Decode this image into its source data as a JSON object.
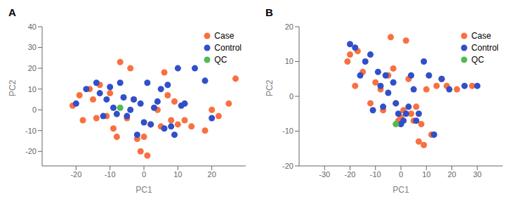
{
  "chart_data": [
    {
      "type": "scatter",
      "title": "A",
      "xlabel": "PC1",
      "ylabel": "PC2",
      "xlim": [
        -30,
        30
      ],
      "ylim": [
        -27,
        40
      ],
      "xticks": [
        -20,
        -10,
        0,
        10,
        20
      ],
      "yticks": [
        -20,
        -10,
        0,
        10,
        20,
        30,
        40
      ],
      "grid": false,
      "legend": "upper right",
      "series": [
        {
          "name": "Case",
          "color": "#F97040",
          "marker": "circle",
          "x": [
            -21,
            -19,
            -18,
            -16,
            -15,
            -14,
            -13,
            -11,
            -10,
            -9,
            -8,
            -7,
            -5,
            -4,
            -3,
            -2,
            -1,
            0,
            1,
            2,
            4,
            5,
            6,
            7,
            8,
            9,
            10,
            12,
            14,
            18,
            20,
            22,
            25,
            27
          ],
          "values": [
            2,
            7,
            -5,
            10,
            5,
            -4,
            12,
            -3,
            8,
            -9,
            -13,
            23,
            -4,
            20,
            5,
            -14,
            -20,
            -13,
            -22,
            -7,
            0,
            -8,
            18,
            7,
            -5,
            4,
            -7,
            -5,
            -8,
            -10,
            0,
            -3,
            3,
            15
          ]
        },
        {
          "name": "Control",
          "color": "#3050C8",
          "marker": "circle",
          "x": [
            -20,
            -17,
            -14,
            -13,
            -12,
            -11,
            -10,
            -9,
            -8,
            -7,
            -6,
            -5,
            -4,
            -3,
            -2,
            -1,
            0,
            1,
            2,
            3,
            4,
            5,
            6,
            7,
            8,
            9,
            10,
            11,
            12,
            15,
            18,
            20
          ],
          "values": [
            3,
            10,
            13,
            8,
            -3,
            5,
            11,
            1,
            -2,
            13,
            6,
            -3,
            0,
            5,
            -12,
            3,
            -6,
            13,
            -7,
            1,
            4,
            10,
            -9,
            12,
            -8,
            -12,
            20,
            2,
            3,
            20,
            14,
            -4
          ]
        },
        {
          "name": "QC",
          "color": "#50BB50",
          "marker": "circle",
          "x": [
            -7
          ],
          "values": [
            1
          ]
        }
      ]
    },
    {
      "type": "scatter",
      "title": "B",
      "xlabel": "PC1",
      "ylabel": "PC2",
      "xlim": [
        -40,
        40
      ],
      "ylim": [
        -20,
        20
      ],
      "xticks": [
        -30,
        -20,
        -10,
        0,
        10,
        20,
        30
      ],
      "yticks": [
        -20,
        -10,
        0,
        10,
        20
      ],
      "grid": false,
      "legend": "upper right",
      "series": [
        {
          "name": "Case",
          "color": "#F97040",
          "marker": "circle",
          "x": [
            -21,
            -20,
            -18,
            -17,
            -15,
            -12,
            -10,
            -8,
            -7,
            -5,
            -4,
            -3,
            -2,
            -1,
            0,
            1,
            2,
            3,
            4,
            5,
            6,
            7,
            8,
            9,
            10,
            12,
            14,
            16,
            18,
            22,
            28
          ],
          "values": [
            10,
            12,
            3,
            13,
            7,
            -2,
            4,
            2,
            -4,
            6,
            17,
            8,
            -2,
            -7,
            -6,
            -4,
            16,
            5,
            -5,
            -7,
            -3,
            -13,
            -8,
            -14,
            2,
            -11,
            3,
            5,
            3,
            2,
            3
          ]
        },
        {
          "name": "Control",
          "color": "#3050C8",
          "marker": "circle",
          "x": [
            -20,
            -18,
            -16,
            -14,
            -12,
            -11,
            -9,
            -8,
            -7,
            -6,
            -5,
            -3,
            -2,
            -1,
            0,
            1,
            2,
            3,
            4,
            5,
            6,
            7,
            9,
            11,
            13,
            16,
            19,
            25,
            30
          ],
          "values": [
            15,
            14,
            6,
            10,
            12,
            -4,
            7,
            3,
            -3,
            6,
            1,
            4,
            -2,
            -5,
            -8,
            -7,
            -5,
            -3,
            6,
            2,
            -7,
            -5,
            10,
            6,
            -11,
            5,
            2,
            3,
            3
          ]
        },
        {
          "name": "QC",
          "color": "#50BB50",
          "marker": "circle",
          "x": [
            -2
          ],
          "values": [
            -8
          ]
        }
      ]
    }
  ]
}
